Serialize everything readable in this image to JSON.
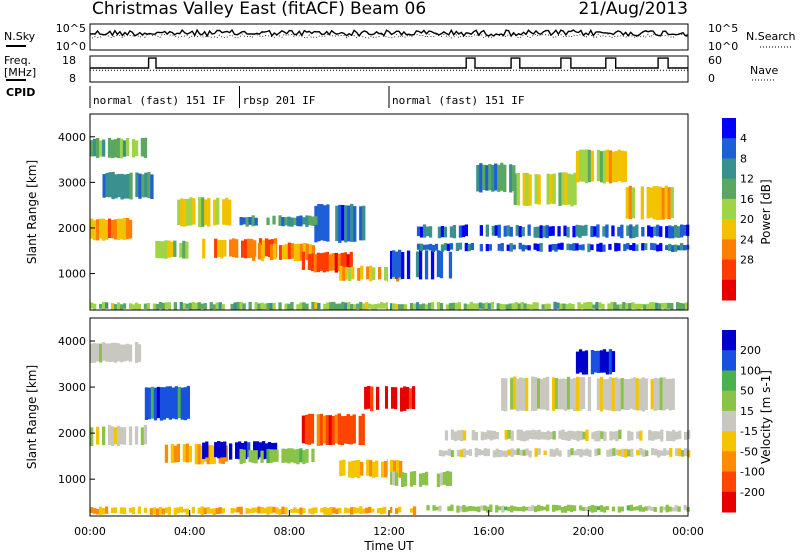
{
  "header": {
    "title": "Christmas Valley East (fitACF)",
    "beam": "Beam 06",
    "date": "21/Aug/2013"
  },
  "chart_data": [
    {
      "type": "line",
      "panel": "noise",
      "left_label": "N.Sky",
      "right_label": "N.Search",
      "left_ticks": [
        "10^5",
        "10^0"
      ],
      "right_ticks": [
        "10^5",
        "10^0"
      ],
      "series": []
    },
    {
      "type": "line",
      "panel": "frequency",
      "left_label_lines": [
        "Freq.",
        "[MHz]"
      ],
      "right_label": "Nave",
      "left_ticks": [
        "18",
        "8"
      ],
      "right_ticks": [
        "60",
        "0"
      ],
      "series": [
        {
          "x": [
            0,
            2.35,
            2.35,
            2.65,
            2.65,
            15.1,
            15.1,
            15.45,
            15.45,
            16.9,
            16.9,
            17.25,
            17.25,
            18.9,
            18.9,
            19.3,
            19.3,
            20.7,
            20.7,
            21.1,
            21.1,
            22.8,
            22.8,
            23.2,
            23.2,
            24
          ],
          "y": [
            13.4,
            13.4,
            17.2,
            17.2,
            13.4,
            13.4,
            17.2,
            17.2,
            13.4,
            13.4,
            17.2,
            17.2,
            13.4,
            13.4,
            17.2,
            17.2,
            13.4,
            13.4,
            17.2,
            17.2,
            13.4,
            13.4,
            17.2,
            17.2,
            13.4,
            13.4
          ]
        },
        {
          "x": [
            0,
            24
          ],
          "y": [
            12.5,
            12.5
          ],
          "dotted": true
        }
      ]
    },
    {
      "type": "table",
      "panel": "cpid",
      "label": "CPID",
      "segments": [
        {
          "start": 0,
          "end": 6.0,
          "label": "normal (fast) 151 IF"
        },
        {
          "start": 6.0,
          "end": 12.0,
          "label": "rbsp 201 IF"
        },
        {
          "start": 12.0,
          "end": 24.0,
          "label": "normal (fast) 151 IF"
        }
      ]
    },
    {
      "type": "heatmap",
      "panel": "power",
      "ylabel": "Slant Range [km]",
      "ylim": [
        200,
        4500
      ],
      "yticks": [
        1000,
        2000,
        3000,
        4000
      ],
      "colorbar": {
        "label": "Power [dB]",
        "ticks": [
          "4",
          "8",
          "12",
          "16",
          "20",
          "24",
          "28"
        ],
        "colors": [
          "#0000ff",
          "#1e5fd6",
          "#3a8f8f",
          "#5aa860",
          "#9ed447",
          "#f2c200",
          "#ff7f00",
          "#ff3b00",
          "#e60000"
        ]
      },
      "bands": [
        {
          "x0": 0.0,
          "x1": 1.8,
          "r0": 1750,
          "r1": 2200,
          "v": 22
        },
        {
          "x0": 0.0,
          "x1": 2.2,
          "r0": 3550,
          "r1": 3950,
          "v": 12
        },
        {
          "x0": 0.5,
          "x1": 2.5,
          "r0": 2650,
          "r1": 3200,
          "v": 8
        },
        {
          "x0": 2.5,
          "x1": 4.0,
          "r0": 1350,
          "r1": 1700,
          "v": 16
        },
        {
          "x0": 3.5,
          "x1": 6.0,
          "r0": 2050,
          "r1": 2650,
          "v": 18
        },
        {
          "x0": 4.5,
          "x1": 7.5,
          "r0": 1350,
          "r1": 1750,
          "v": 24
        },
        {
          "x0": 6.5,
          "x1": 9.0,
          "r0": 1300,
          "r1": 1650,
          "v": 22
        },
        {
          "x0": 8.5,
          "x1": 10.5,
          "r0": 1050,
          "r1": 1450,
          "v": 26
        },
        {
          "x0": 10.0,
          "x1": 12.5,
          "r0": 850,
          "r1": 1150,
          "v": 20
        },
        {
          "x0": 9.0,
          "x1": 11.0,
          "r0": 1700,
          "r1": 2500,
          "v": 6
        },
        {
          "x0": 6.0,
          "x1": 9.0,
          "r0": 2050,
          "r1": 2250,
          "v": 10
        },
        {
          "x0": 12.0,
          "x1": 14.5,
          "r0": 900,
          "r1": 1500,
          "v": 6
        },
        {
          "x0": 15.5,
          "x1": 17.0,
          "r0": 2800,
          "r1": 3400,
          "v": 10
        },
        {
          "x0": 17.0,
          "x1": 19.5,
          "r0": 2500,
          "r1": 3200,
          "v": 16
        },
        {
          "x0": 19.5,
          "x1": 21.5,
          "r0": 3000,
          "r1": 3700,
          "v": 18
        },
        {
          "x0": 21.5,
          "x1": 23.5,
          "r0": 2200,
          "r1": 2900,
          "v": 20
        },
        {
          "x0": 13.0,
          "x1": 24.0,
          "r0": 1800,
          "r1": 2050,
          "v": 6
        },
        {
          "x0": 13.0,
          "x1": 24.0,
          "r0": 1500,
          "r1": 1650,
          "v": 5
        },
        {
          "x0": 0.0,
          "x1": 24.0,
          "r0": 200,
          "r1": 350,
          "v": 14
        }
      ]
    },
    {
      "type": "heatmap",
      "panel": "velocity",
      "ylabel": "Slant Range [km]",
      "xlabel": "Time UT",
      "ylim": [
        200,
        4500
      ],
      "yticks": [
        1000,
        2000,
        3000,
        4000
      ],
      "xticks": [
        "00:00",
        "04:00",
        "08:00",
        "12:00",
        "16:00",
        "20:00",
        "00:00"
      ],
      "xlim": [
        0,
        24
      ],
      "colorbar": {
        "label": "Velocity [m s-1]",
        "ticks": [
          "200",
          "100",
          "50",
          "15",
          "-15",
          "-50",
          "-100",
          "-200"
        ],
        "colors": [
          "#0000cc",
          "#1850e0",
          "#4caf50",
          "#8bc34a",
          "#c8c8c0",
          "#f5c400",
          "#ff8c00",
          "#ff4500",
          "#e60000"
        ]
      },
      "bands": [
        {
          "x0": 0.0,
          "x1": 2.2,
          "r0": 1750,
          "r1": 2150,
          "v": 0
        },
        {
          "x0": 0.0,
          "x1": 2.0,
          "r0": 3550,
          "r1": 3950,
          "v": 0
        },
        {
          "x0": 2.2,
          "x1": 4.0,
          "r0": 2300,
          "r1": 3000,
          "v": 150
        },
        {
          "x0": 3.0,
          "x1": 5.5,
          "r0": 1350,
          "r1": 1750,
          "v": -60
        },
        {
          "x0": 4.5,
          "x1": 7.5,
          "r0": 1450,
          "r1": 1800,
          "v": 200
        },
        {
          "x0": 6.0,
          "x1": 9.0,
          "r0": 1350,
          "r1": 1650,
          "v": 60
        },
        {
          "x0": 8.5,
          "x1": 11.0,
          "r0": 1750,
          "r1": 2400,
          "v": -150
        },
        {
          "x0": 10.0,
          "x1": 12.5,
          "r0": 1050,
          "r1": 1400,
          "v": -60
        },
        {
          "x0": 11.0,
          "x1": 13.0,
          "r0": 2500,
          "r1": 3000,
          "v": -200
        },
        {
          "x0": 12.0,
          "x1": 14.5,
          "r0": 850,
          "r1": 1150,
          "v": 40
        },
        {
          "x0": 14.0,
          "x1": 24.0,
          "r0": 1850,
          "r1": 2050,
          "v": 0
        },
        {
          "x0": 14.0,
          "x1": 24.0,
          "r0": 1500,
          "r1": 1650,
          "v": 0
        },
        {
          "x0": 16.5,
          "x1": 23.5,
          "r0": 2500,
          "r1": 3200,
          "v": 0
        },
        {
          "x0": 19.5,
          "x1": 21.0,
          "r0": 3300,
          "r1": 3800,
          "v": 180
        },
        {
          "x0": 13.5,
          "x1": 24.0,
          "r0": 300,
          "r1": 420,
          "v": 50
        },
        {
          "x0": 0.0,
          "x1": 13.0,
          "r0": 250,
          "r1": 380,
          "v": -60
        }
      ]
    }
  ]
}
